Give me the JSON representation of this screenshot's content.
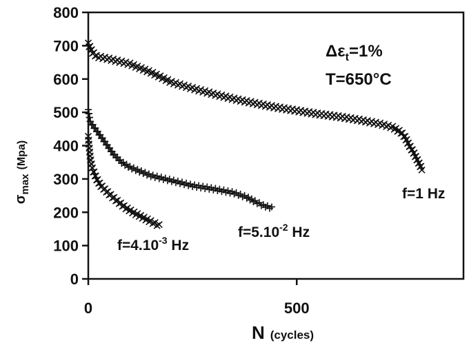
{
  "chart_data": {
    "type": "scatter",
    "xlim": [
      0,
      900
    ],
    "ylim": [
      0,
      800
    ],
    "xticks": [
      "0",
      "500"
    ],
    "yticks": [
      "0",
      "100",
      "200",
      "300",
      "400",
      "500",
      "600",
      "700",
      "800"
    ],
    "xlabel": {
      "main": "N",
      "unit": "(cycles)"
    },
    "ylabel": {
      "symbol": "σ",
      "sub": "max",
      "unit": "(Mpa)"
    },
    "annotations": {
      "strain": {
        "prefix": "Δε",
        "sub": "t",
        "suffix": "=1%"
      },
      "temperature": "T=650°C"
    },
    "series": [
      {
        "name": "f=1 Hz",
        "label": {
          "text": "f=1 Hz"
        },
        "marker": "x",
        "color": "#111111",
        "points": [
          [
            0,
            705
          ],
          [
            10,
            680
          ],
          [
            20,
            668
          ],
          [
            50,
            660
          ],
          [
            100,
            645
          ],
          [
            150,
            620
          ],
          [
            200,
            590
          ],
          [
            250,
            572
          ],
          [
            300,
            555
          ],
          [
            350,
            540
          ],
          [
            400,
            527
          ],
          [
            450,
            515
          ],
          [
            500,
            505
          ],
          [
            550,
            495
          ],
          [
            600,
            487
          ],
          [
            650,
            477
          ],
          [
            700,
            465
          ],
          [
            730,
            455
          ],
          [
            750,
            440
          ],
          [
            760,
            425
          ],
          [
            770,
            400
          ],
          [
            780,
            380
          ],
          [
            790,
            355
          ],
          [
            800,
            330
          ]
        ]
      },
      {
        "name": "f=5.10⁻² Hz",
        "label": {
          "base": "f=5.10",
          "sup": "-2",
          "tail": " Hz"
        },
        "marker": "+",
        "color": "#111111",
        "points": [
          [
            0,
            505
          ],
          [
            5,
            470
          ],
          [
            20,
            445
          ],
          [
            40,
            410
          ],
          [
            60,
            375
          ],
          [
            80,
            350
          ],
          [
            100,
            335
          ],
          [
            150,
            310
          ],
          [
            200,
            295
          ],
          [
            250,
            280
          ],
          [
            300,
            270
          ],
          [
            350,
            258
          ],
          [
            380,
            245
          ],
          [
            400,
            232
          ],
          [
            420,
            220
          ],
          [
            440,
            213
          ]
        ]
      },
      {
        "name": "f=4.10⁻³ Hz",
        "label": {
          "base": "f=4.10",
          "sup": "-3",
          "tail": " Hz"
        },
        "marker": "x",
        "color": "#111111",
        "points": [
          [
            0,
            425
          ],
          [
            5,
            360
          ],
          [
            10,
            330
          ],
          [
            20,
            300
          ],
          [
            30,
            280
          ],
          [
            50,
            255
          ],
          [
            70,
            233
          ],
          [
            90,
            213
          ],
          [
            110,
            198
          ],
          [
            130,
            185
          ],
          [
            150,
            172
          ],
          [
            170,
            160
          ]
        ]
      }
    ]
  }
}
